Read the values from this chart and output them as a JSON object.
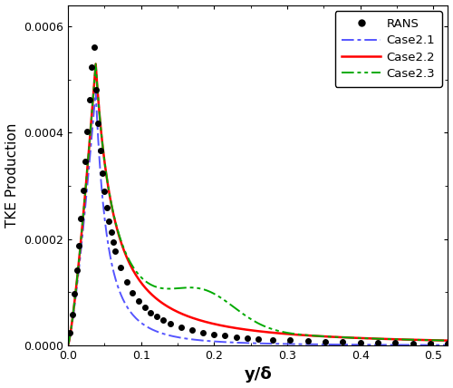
{
  "title": "",
  "xlabel": "y/δ",
  "ylabel": "TKE Production",
  "xlim": [
    0,
    0.52
  ],
  "ylim": [
    0,
    0.00064
  ],
  "yticks": [
    0,
    0.0002,
    0.0004,
    0.0006
  ],
  "xticks": [
    0.0,
    0.1,
    0.2,
    0.3,
    0.4,
    0.5
  ],
  "legend_labels": [
    "RANS",
    "Case2.1",
    "Case2.2",
    "Case2.3"
  ],
  "colors": {
    "RANS": "#000000",
    "Case2.1": "#5555ff",
    "Case2.2": "#ff0000",
    "Case2.3": "#00aa00"
  },
  "background": "#ffffff"
}
